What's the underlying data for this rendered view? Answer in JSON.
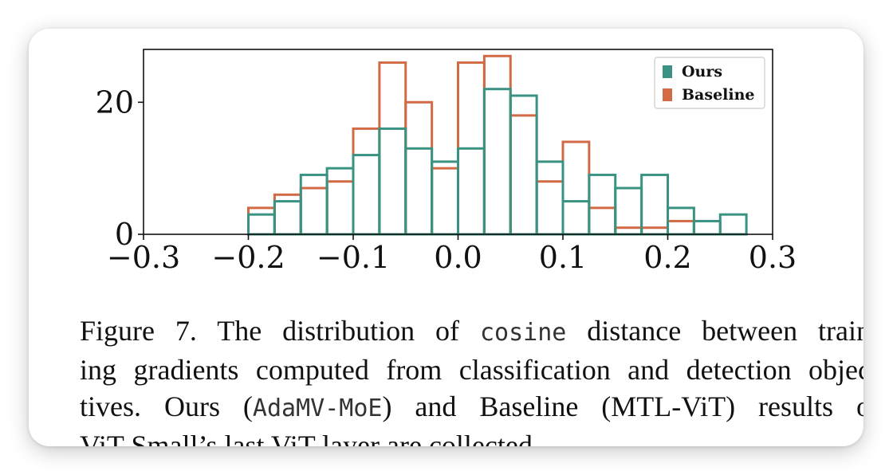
{
  "chart_data": {
    "type": "bar",
    "subtype": "histogram-step",
    "x_ticks": [
      "−0.3",
      "−0.2",
      "−0.1",
      "0.0",
      "0.1",
      "0.2",
      "0.3"
    ],
    "x_tick_values": [
      -0.3,
      -0.2,
      -0.1,
      0.0,
      0.1,
      0.2,
      0.3
    ],
    "y_ticks": [
      "0",
      "20"
    ],
    "y_tick_values": [
      0,
      20
    ],
    "xlim": [
      -0.3,
      0.3
    ],
    "ylim": [
      0,
      28
    ],
    "bin_edges": [
      -0.2,
      -0.175,
      -0.15,
      -0.125,
      -0.1,
      -0.075,
      -0.05,
      -0.025,
      0.0,
      0.025,
      0.05,
      0.075,
      0.1,
      0.125,
      0.15,
      0.175,
      0.2,
      0.225,
      0.25,
      0.275
    ],
    "series": [
      {
        "name": "Baseline",
        "color": "#d26b45",
        "values": [
          4,
          6,
          7,
          8,
          16,
          26,
          20,
          10,
          26,
          27,
          18,
          8,
          14,
          4,
          1,
          1,
          2,
          0,
          0
        ]
      },
      {
        "name": "Ours",
        "color": "#3a9282",
        "values": [
          3,
          5,
          9,
          10,
          12,
          16,
          13,
          11,
          13,
          22,
          21,
          11,
          5,
          9,
          7,
          9,
          4,
          2,
          3
        ]
      }
    ],
    "legend": {
      "position": "top-right",
      "entries": [
        "Ours",
        "Baseline"
      ]
    },
    "grid": false
  },
  "caption": {
    "line1_a": "Figure 7. The distribution of ",
    "line1_code": "cosine",
    "line1_b": " distance between train-",
    "line2": "ing gradients computed from classification and detection objec-",
    "line3_a": "tives.  Ours (",
    "line3_code": "AdaMV-MoE",
    "line3_b": ") and Baseline (MTL-ViT) results of",
    "line4": "ViT-Small’s last ViT layer are collected."
  }
}
